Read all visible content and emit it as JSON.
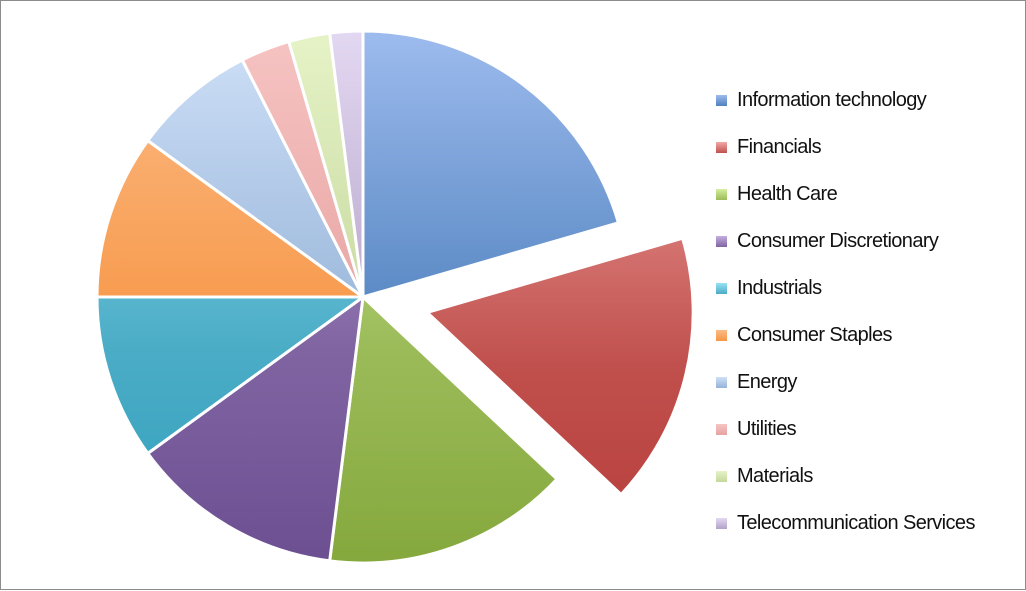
{
  "chart_data": {
    "type": "pie",
    "title": "",
    "categories": [
      "Information technology",
      "Financials",
      "Health Care",
      "Consumer Discretionary",
      "Industrials",
      "Consumer Staples",
      "Energy",
      "Utilities",
      "Materials",
      "Telecommunication Services"
    ],
    "values": [
      20.5,
      16.5,
      15.0,
      13.0,
      10.0,
      10.0,
      7.5,
      3.0,
      2.5,
      2.0
    ],
    "exploded": [
      "Financials"
    ],
    "legend_position": "right",
    "colors": [
      "#4f81bd",
      "#c0504d",
      "#9bbb59",
      "#8064a2",
      "#4bacc6",
      "#f79646",
      "#95b3d7",
      "#e6a2a0",
      "#c4d79b",
      "#b3a2c7"
    ],
    "colors_light": [
      "#9dbbee",
      "#f2a9a7",
      "#d5ef9f",
      "#c4afdf",
      "#96e1f5",
      "#fbbb86",
      "#cfe0f8",
      "#f6c4c3",
      "#e6f3c7",
      "#e3d8f2"
    ],
    "colors_dark": [
      "#3568a8",
      "#b63b38",
      "#85a83d",
      "#6b4f91",
      "#31a0bc",
      "#ef8128",
      "#7f9fc9",
      "#d78c8a",
      "#b0c882",
      "#a08fb8"
    ]
  }
}
